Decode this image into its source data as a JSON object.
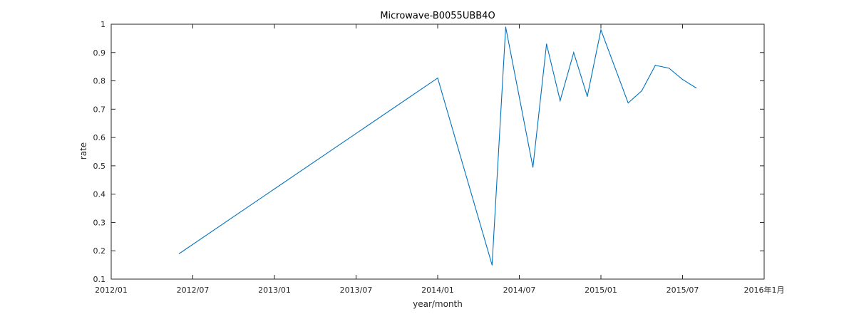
{
  "chart_data": {
    "type": "line",
    "title": "Microwave-B0055UBB4O",
    "xlabel": "year/month",
    "ylabel": "rate",
    "x_ticks": [
      "2012/01",
      "2012/07",
      "2013/01",
      "2013/07",
      "2014/01",
      "2014/07",
      "2015/01",
      "2015/07",
      "2016年1月"
    ],
    "y_ticks": [
      "0.1",
      "0.2",
      "0.3",
      "0.4",
      "0.5",
      "0.6",
      "0.7",
      "0.8",
      "0.9",
      "1"
    ],
    "xlim": [
      "2012-01",
      "2016-01"
    ],
    "ylim": [
      0.1,
      1
    ],
    "grid": false,
    "series": [
      {
        "color": "#0072BD",
        "points": [
          {
            "x": "2012-06",
            "y": 0.19
          },
          {
            "x": "2014-01",
            "y": 0.81
          },
          {
            "x": "2014-05",
            "y": 0.15
          },
          {
            "x": "2014-06",
            "y": 0.99
          },
          {
            "x": "2014-08",
            "y": 0.495
          },
          {
            "x": "2014-09",
            "y": 0.93
          },
          {
            "x": "2014-10",
            "y": 0.73
          },
          {
            "x": "2014-11",
            "y": 0.9
          },
          {
            "x": "2014-12",
            "y": 0.745
          },
          {
            "x": "2015-01",
            "y": 0.98
          },
          {
            "x": "2015-03",
            "y": 0.722
          },
          {
            "x": "2015-04",
            "y": 0.765
          },
          {
            "x": "2015-05",
            "y": 0.855
          },
          {
            "x": "2015-06",
            "y": 0.845
          },
          {
            "x": "2015-07",
            "y": 0.805
          },
          {
            "x": "2015-08",
            "y": 0.775
          }
        ]
      }
    ]
  }
}
